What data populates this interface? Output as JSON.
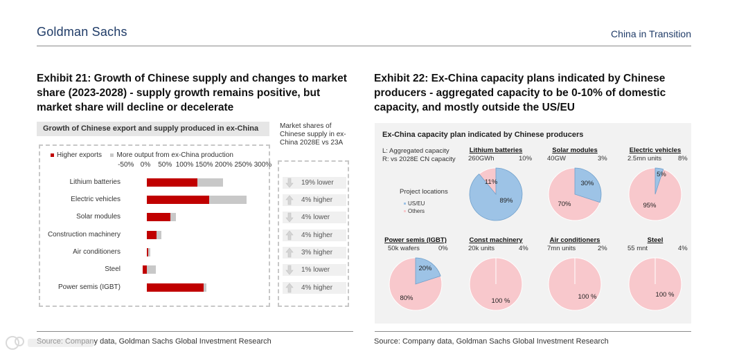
{
  "header": {
    "brand": "Goldman Sachs",
    "series": "China in Transition"
  },
  "exhibit21": {
    "title": "Exhibit 21: Growth of Chinese supply and changes to market share (2023-2028) - supply growth remains positive, but market share will decline or decelerate",
    "panel_title": "Growth of Chinese export and supply produced in ex-China",
    "share_header": "Market shares of Chinese supply in ex-China 2028E vs 23A",
    "source": "Source: Company data, Goldman Sachs Global Investment Research"
  },
  "exhibit22": {
    "title": "Exhibit 22: Ex-China capacity plans indicated by Chinese producers - aggregated capacity to be 0-10% of domestic capacity, and mostly outside the US/EU",
    "panel_title": "Ex-China capacity plan indicated by Chinese producers",
    "note_l": "L: Aggregated capacity",
    "note_r": "R: vs 2028E CN capacity",
    "legend_title": "Project locations",
    "source": "Source: Company data, Goldman Sachs Global Investment Research"
  },
  "colors": {
    "red": "#c00000",
    "grey": "#c8c8c8",
    "blue": "#9dc3e6",
    "pink": "#f8c8cc",
    "navy": "#1f3b67"
  },
  "chart_data": [
    {
      "type": "bar",
      "stacked": true,
      "orientation": "horizontal",
      "title": "Growth of Chinese export and supply produced in ex-China",
      "categories": [
        "Lithium batteries",
        "Electric vehicles",
        "Solar modules",
        "Construction machinery",
        "Air conditioners",
        "Steel",
        "Power semis (IGBT)"
      ],
      "series": [
        {
          "name": "Higher exports",
          "values": [
            130,
            160,
            60,
            25,
            3,
            -10,
            145
          ]
        },
        {
          "name": "More output from ex-China production",
          "values": [
            65,
            95,
            15,
            13,
            5,
            23,
            8
          ]
        }
      ],
      "ticks": [
        "-50%",
        "0%",
        "50%",
        "100%",
        "150%",
        "200%",
        "250%",
        "300%"
      ],
      "xlim": [
        -50,
        300
      ],
      "market_share": {
        "header": "Market shares of Chinese supply in ex-China 2028E vs 23A",
        "rows": [
          {
            "direction": "down",
            "text": "19% lower"
          },
          {
            "direction": "up",
            "text": "4% higher"
          },
          {
            "direction": "down",
            "text": "4% lower"
          },
          {
            "direction": "up",
            "text": "4% higher"
          },
          {
            "direction": "up",
            "text": "3% higher"
          },
          {
            "direction": "down",
            "text": "1% lower"
          },
          {
            "direction": "up",
            "text": "4% higher"
          }
        ]
      }
    },
    {
      "type": "pie",
      "title": "Ex-China capacity plan indicated by Chinese producers",
      "legend": [
        "US/EU",
        "Others"
      ],
      "pies": [
        {
          "name": "Lithium batteries",
          "left": "260GWh",
          "right": "10%",
          "us_eu": 89,
          "others": 11,
          "labels": [
            "89%",
            "11%"
          ]
        },
        {
          "name": "Solar modules",
          "left": "40GW",
          "right": "3%",
          "us_eu": 30,
          "others": 70,
          "labels": [
            "30%",
            "70%"
          ]
        },
        {
          "name": "Electric vehicles",
          "left": "2.5mn units",
          "right": "8%",
          "us_eu": 5,
          "others": 95,
          "labels": [
            "5%",
            "95%"
          ]
        },
        {
          "name": "Power semis (IGBT)",
          "left": "50k wafers",
          "right": "0%",
          "us_eu": 20,
          "others": 80,
          "labels": [
            "20%",
            "80%"
          ]
        },
        {
          "name": "Const machinery",
          "left": "20k units",
          "right": "4%",
          "us_eu": 0,
          "others": 100,
          "labels": [
            "",
            "100 %"
          ]
        },
        {
          "name": "Air conditioners",
          "left": "7mn units",
          "right": "2%",
          "us_eu": 0,
          "others": 100,
          "labels": [
            "",
            "100 %"
          ]
        },
        {
          "name": "Steel",
          "left": "55 mnt",
          "right": "4%",
          "us_eu": 0,
          "others": 100,
          "labels": [
            "",
            "100 %"
          ]
        }
      ]
    }
  ]
}
